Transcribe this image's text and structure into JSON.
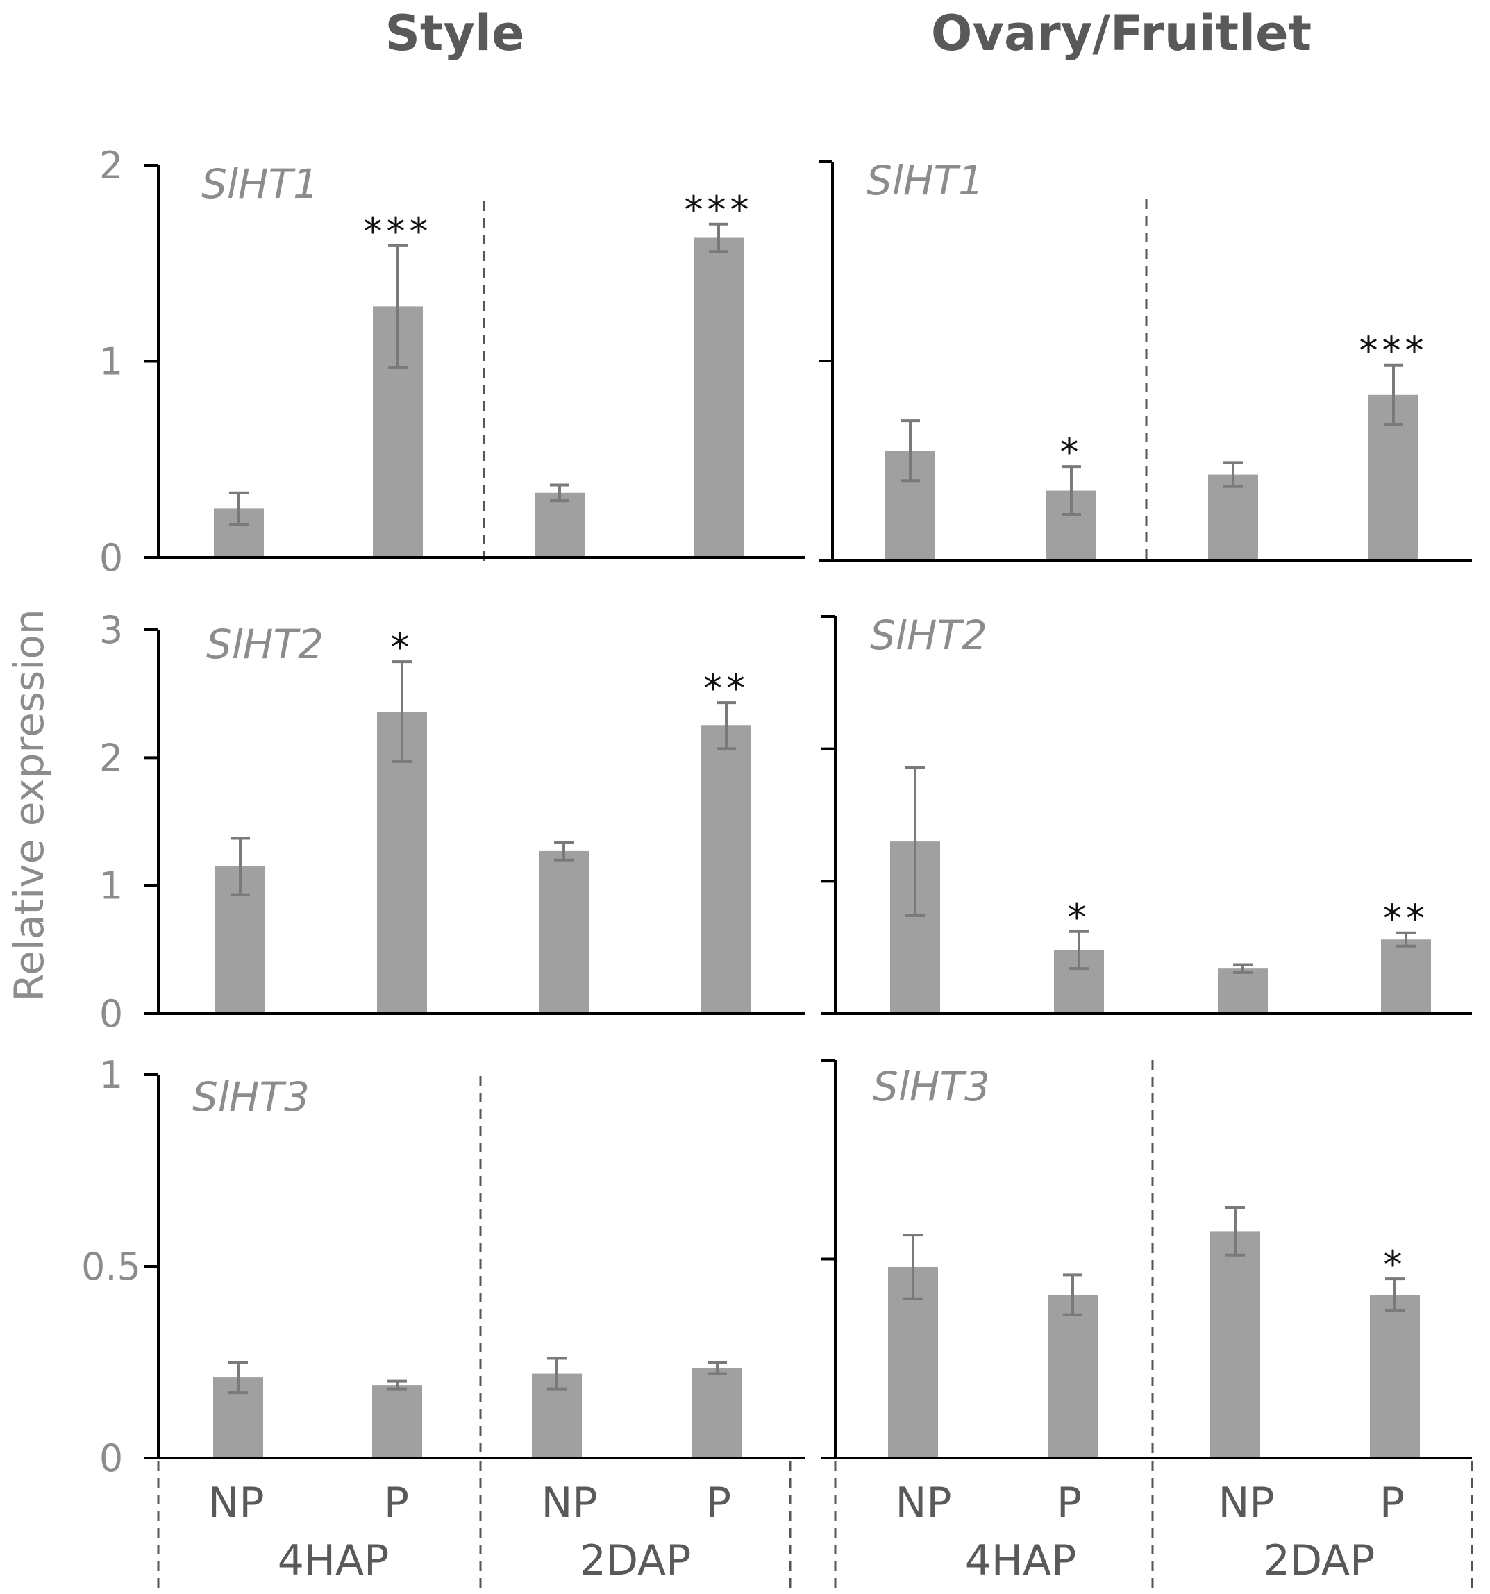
{
  "columns": [
    "Style",
    "Ovary/Fruitlet"
  ],
  "ylabel": "Relative expression",
  "categories": [
    "NP",
    "P"
  ],
  "groups": [
    "4HAP",
    "2DAP"
  ],
  "colors": {
    "bar": "#a0a0a0",
    "error": "#7a7a7a",
    "axis": "#000000",
    "divider": "#555555"
  },
  "chart_data": [
    {
      "type": "bar",
      "column": "Style",
      "gene": "SlHT1",
      "ylim": [
        0,
        2
      ],
      "yticks": [
        "0",
        "1",
        "2"
      ],
      "tickvals": [
        0,
        1,
        2
      ],
      "x": [
        "4HAP NP",
        "4HAP P",
        "2DAP NP",
        "2DAP P"
      ],
      "values": [
        0.25,
        1.28,
        0.33,
        1.63
      ],
      "errors": [
        0.08,
        0.31,
        0.04,
        0.07
      ],
      "significance": [
        "",
        "***",
        "",
        "***"
      ]
    },
    {
      "type": "bar",
      "column": "Style",
      "gene": "SlHT2",
      "ylim": [
        0,
        3
      ],
      "yticks": [
        "0",
        "1",
        "2",
        "3"
      ],
      "tickvals": [
        0,
        1,
        2,
        3
      ],
      "x": [
        "4HAP NP",
        "4HAP P",
        "2DAP NP",
        "2DAP P"
      ],
      "values": [
        1.15,
        2.36,
        1.27,
        2.25
      ],
      "errors": [
        0.22,
        0.39,
        0.07,
        0.18
      ],
      "significance": [
        "",
        "*",
        "",
        "**"
      ]
    },
    {
      "type": "bar",
      "column": "Style",
      "gene": "SlHT3",
      "ylim": [
        0,
        1
      ],
      "yticks": [
        "0",
        "0.5",
        "1"
      ],
      "tickvals": [
        0,
        0.5,
        1
      ],
      "x": [
        "4HAP NP",
        "4HAP P",
        "2DAP NP",
        "2DAP P"
      ],
      "values": [
        0.21,
        0.19,
        0.22,
        0.235
      ],
      "errors": [
        0.04,
        0.01,
        0.04,
        0.015
      ],
      "significance": [
        "",
        "",
        "",
        ""
      ]
    },
    {
      "type": "bar",
      "column": "Ovary/Fruitlet",
      "gene": "SlHT1",
      "ylim": [
        0,
        2
      ],
      "yticks": [
        "",
        "",
        ""
      ],
      "tickvals": [
        0,
        1,
        2
      ],
      "x": [
        "4HAP NP",
        "4HAP P",
        "2DAP NP",
        "2DAP P"
      ],
      "values": [
        0.55,
        0.35,
        0.43,
        0.83
      ],
      "errors": [
        0.15,
        0.12,
        0.06,
        0.15
      ],
      "significance": [
        "",
        "*",
        "",
        "***"
      ]
    },
    {
      "type": "bar",
      "column": "Ovary/Fruitlet",
      "gene": "SlHT2",
      "ylim": [
        0,
        3
      ],
      "yticks": [
        "",
        "",
        "",
        ""
      ],
      "tickvals": [
        0,
        1,
        2,
        3
      ],
      "x": [
        "4HAP NP",
        "4HAP P",
        "2DAP NP",
        "2DAP P"
      ],
      "values": [
        1.3,
        0.48,
        0.34,
        0.56
      ],
      "errors": [
        0.56,
        0.14,
        0.03,
        0.05
      ],
      "significance": [
        "",
        "*",
        "",
        "**"
      ]
    },
    {
      "type": "bar",
      "column": "Ovary/Fruitlet",
      "gene": "SlHT3",
      "ylim": [
        0,
        1
      ],
      "yticks": [
        "",
        "",
        ""
      ],
      "tickvals": [
        0,
        0.5,
        1
      ],
      "x": [
        "4HAP NP",
        "4HAP P",
        "2DAP NP",
        "2DAP P"
      ],
      "values": [
        0.48,
        0.41,
        0.57,
        0.41
      ],
      "errors": [
        0.08,
        0.05,
        0.06,
        0.04
      ],
      "significance": [
        "",
        "",
        "",
        "*"
      ]
    }
  ]
}
